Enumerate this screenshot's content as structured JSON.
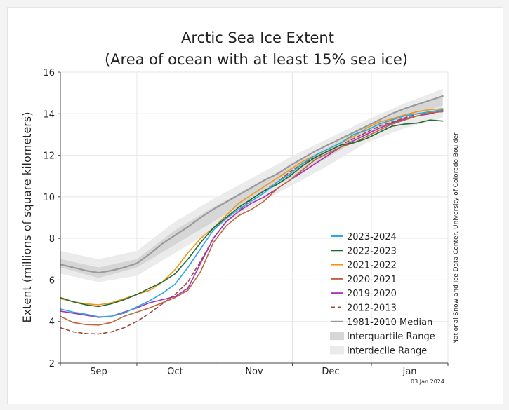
{
  "chart_data": {
    "type": "line",
    "title": "Arctic Sea Ice Extent",
    "subtitle": "(Area of ocean with at least 15% sea ice)",
    "ylabel": "Extent (millions of square kilometers)",
    "xlabel": "",
    "ylim": [
      2,
      16
    ],
    "yticks": [
      "2",
      "4",
      "6",
      "8",
      "10",
      "12",
      "14",
      "16"
    ],
    "month_labels": [
      {
        "label": "Sep",
        "day": 15
      },
      {
        "label": "Oct",
        "day": 45
      },
      {
        "label": "Nov",
        "day": 76
      },
      {
        "label": "Dec",
        "day": 106
      },
      {
        "label": "Jan",
        "day": 137
      }
    ],
    "xlim": [
      0,
      152
    ],
    "grid": true,
    "legend_position": "bottom-right",
    "credit": "National Snow and Ice Data Center, University of Colorado Boulder",
    "date_stamp": "03 Jan 2024",
    "interdecile_range": {
      "name": "Interdecile Range",
      "x": [
        0,
        15,
        30,
        45,
        60,
        75,
        90,
        105,
        120,
        135,
        150
      ],
      "low": [
        6.3,
        5.9,
        6.2,
        7.3,
        8.4,
        9.5,
        10.5,
        11.5,
        12.6,
        13.3,
        13.8
      ],
      "high": [
        7.4,
        7.0,
        7.4,
        8.8,
        9.9,
        10.9,
        11.9,
        12.8,
        13.7,
        14.5,
        15.2
      ],
      "color": "#ebebeb"
    },
    "interquartile_range": {
      "name": "Interquartile Range",
      "x": [
        0,
        15,
        30,
        45,
        60,
        75,
        90,
        105,
        120,
        135,
        150
      ],
      "low": [
        6.6,
        6.1,
        6.6,
        7.7,
        8.8,
        9.9,
        10.9,
        11.9,
        13.0,
        13.8,
        14.4
      ],
      "high": [
        7.0,
        6.6,
        7.0,
        8.4,
        9.5,
        10.5,
        11.5,
        12.4,
        13.4,
        14.2,
        14.9
      ],
      "color": "#d6d6d6"
    },
    "series": [
      {
        "name": "2023-2024",
        "color": "#2aa8e0",
        "dash": "",
        "x": [
          0,
          5,
          10,
          15,
          20,
          25,
          30,
          35,
          40,
          45,
          50,
          55,
          60,
          65,
          70,
          75,
          80,
          85,
          90,
          95,
          100,
          105,
          110,
          115,
          120,
          125,
          130,
          135,
          140,
          145,
          150
        ],
        "y": [
          4.6,
          4.45,
          4.35,
          4.22,
          4.25,
          4.4,
          4.7,
          5.0,
          5.35,
          5.8,
          6.6,
          7.5,
          8.4,
          8.95,
          9.4,
          9.8,
          10.2,
          10.7,
          11.1,
          11.6,
          12.0,
          12.3,
          12.6,
          13.0,
          13.2,
          13.5,
          13.7,
          13.9,
          14.0,
          14.1,
          14.2
        ]
      },
      {
        "name": "2022-2023",
        "color": "#1f6b33",
        "dash": "",
        "x": [
          0,
          5,
          10,
          15,
          20,
          25,
          30,
          35,
          40,
          45,
          50,
          55,
          60,
          65,
          70,
          75,
          80,
          85,
          90,
          95,
          100,
          105,
          110,
          115,
          120,
          125,
          130,
          135,
          140,
          145,
          150
        ],
        "y": [
          5.15,
          4.95,
          4.8,
          4.72,
          4.85,
          5.05,
          5.3,
          5.6,
          5.9,
          6.3,
          7.0,
          7.8,
          8.5,
          9.0,
          9.5,
          9.9,
          10.3,
          10.6,
          11.0,
          11.5,
          11.9,
          12.2,
          12.5,
          12.6,
          12.8,
          13.1,
          13.4,
          13.5,
          13.55,
          13.7,
          13.65
        ]
      },
      {
        "name": "2021-2022",
        "color": "#f39419",
        "dash": "",
        "x": [
          0,
          5,
          10,
          15,
          20,
          25,
          30,
          35,
          40,
          45,
          50,
          55,
          60,
          65,
          70,
          75,
          80,
          85,
          90,
          95,
          100,
          105,
          110,
          115,
          120,
          125,
          130,
          135,
          140,
          145,
          150
        ],
        "y": [
          5.1,
          4.95,
          4.85,
          4.8,
          4.9,
          5.1,
          5.3,
          5.5,
          5.9,
          6.5,
          7.3,
          8.0,
          8.5,
          9.1,
          9.7,
          10.1,
          10.5,
          10.9,
          11.3,
          11.7,
          12.0,
          12.3,
          12.6,
          12.9,
          13.3,
          13.6,
          13.75,
          13.95,
          14.1,
          14.2,
          14.25
        ]
      },
      {
        "name": "2020-2021",
        "color": "#b8683a",
        "dash": "",
        "x": [
          0,
          5,
          10,
          15,
          20,
          25,
          30,
          35,
          40,
          45,
          50,
          55,
          60,
          65,
          70,
          75,
          80,
          85,
          90,
          95,
          100,
          105,
          110,
          115,
          120,
          125,
          130,
          135,
          140,
          145,
          150
        ],
        "y": [
          4.25,
          3.95,
          3.85,
          3.83,
          3.95,
          4.25,
          4.45,
          4.65,
          4.9,
          5.15,
          5.5,
          6.4,
          7.8,
          8.6,
          9.1,
          9.4,
          9.8,
          10.4,
          10.8,
          11.3,
          11.8,
          12.1,
          12.4,
          12.6,
          12.9,
          13.2,
          13.5,
          13.7,
          13.9,
          14.05,
          14.1
        ]
      },
      {
        "name": "2019-2020",
        "color": "#a92fb5",
        "dash": "",
        "x": [
          0,
          5,
          10,
          15,
          20,
          25,
          30,
          35,
          40,
          45,
          50,
          55,
          60,
          65,
          70,
          75,
          80,
          85,
          90,
          95,
          100,
          105,
          110,
          115,
          120,
          125,
          130,
          135,
          140,
          145,
          150
        ],
        "y": [
          4.5,
          4.4,
          4.3,
          4.2,
          4.25,
          4.45,
          4.65,
          4.9,
          5.05,
          5.2,
          5.6,
          6.8,
          8.0,
          8.8,
          9.3,
          9.7,
          10.0,
          10.4,
          10.8,
          11.2,
          11.6,
          12.0,
          12.4,
          12.7,
          13.0,
          13.3,
          13.55,
          13.75,
          13.9,
          14.0,
          14.15
        ]
      },
      {
        "name": "2012-2013",
        "color": "#9e4a3f",
        "dash": "5,4",
        "x": [
          0,
          5,
          10,
          15,
          20,
          25,
          30,
          35,
          40,
          45,
          50,
          55,
          60,
          65,
          70,
          75,
          80,
          85,
          90,
          95,
          100,
          105,
          110,
          115,
          120,
          125,
          130,
          135,
          140,
          145,
          150
        ],
        "y": [
          3.7,
          3.5,
          3.42,
          3.4,
          3.5,
          3.7,
          4.0,
          4.4,
          4.85,
          5.3,
          5.9,
          6.9,
          8.0,
          8.8,
          9.3,
          9.9,
          10.3,
          10.7,
          11.2,
          11.6,
          11.9,
          12.2,
          12.5,
          12.8,
          13.1,
          13.4,
          13.6,
          13.8,
          14.0,
          14.05,
          14.1
        ]
      },
      {
        "name": "1981-2010 Median",
        "color": "#9a9a9a",
        "dash": "",
        "width": 2.2,
        "x": [
          0,
          5,
          10,
          15,
          20,
          25,
          30,
          35,
          40,
          45,
          50,
          55,
          60,
          65,
          70,
          75,
          80,
          85,
          90,
          95,
          100,
          105,
          110,
          115,
          120,
          125,
          130,
          135,
          140,
          145,
          150
        ],
        "y": [
          6.75,
          6.6,
          6.45,
          6.35,
          6.45,
          6.6,
          6.8,
          7.25,
          7.75,
          8.15,
          8.55,
          9.0,
          9.4,
          9.75,
          10.1,
          10.45,
          10.8,
          11.1,
          11.5,
          11.85,
          12.2,
          12.5,
          12.8,
          13.1,
          13.4,
          13.7,
          14.0,
          14.25,
          14.45,
          14.65,
          14.85
        ]
      }
    ],
    "legend": [
      {
        "label": "2023-2024",
        "kind": "line",
        "color": "#2aa8e0",
        "dash": ""
      },
      {
        "label": "2022-2023",
        "kind": "line",
        "color": "#1f6b33",
        "dash": ""
      },
      {
        "label": "2021-2022",
        "kind": "line",
        "color": "#f39419",
        "dash": ""
      },
      {
        "label": "2020-2021",
        "kind": "line",
        "color": "#b8683a",
        "dash": ""
      },
      {
        "label": "2019-2020",
        "kind": "line",
        "color": "#a92fb5",
        "dash": ""
      },
      {
        "label": "2012-2013",
        "kind": "line",
        "color": "#9e4a3f",
        "dash": "5,4"
      },
      {
        "label": "1981-2010 Median",
        "kind": "line",
        "color": "#9a9a9a",
        "dash": ""
      },
      {
        "label": "Interquartile Range",
        "kind": "band",
        "color": "#d6d6d6",
        "dash": ""
      },
      {
        "label": "Interdecile Range",
        "kind": "band",
        "color": "#ebebeb",
        "dash": ""
      }
    ]
  }
}
